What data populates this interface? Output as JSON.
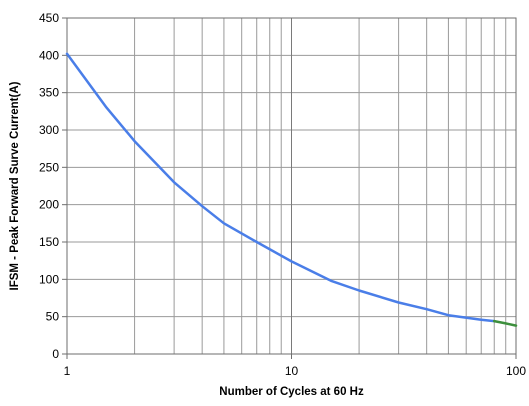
{
  "chart_data": {
    "type": "line",
    "xlabel": "Number of Cycles at 60 Hz",
    "ylabel": "IFSM - Peak Forward Surve Current(A)",
    "xscale": "log",
    "xlim": [
      1,
      100
    ],
    "ylim": [
      0,
      450
    ],
    "xticks": [
      1,
      10,
      100
    ],
    "xtick_labels": [
      "1",
      "10",
      "100"
    ],
    "yticks": [
      0,
      50,
      100,
      150,
      200,
      250,
      300,
      350,
      400,
      450
    ],
    "ytick_labels": [
      "0",
      "50",
      "100",
      "150",
      "200",
      "250",
      "300",
      "350",
      "400",
      "450"
    ],
    "grid": true,
    "legend": "none",
    "series": [
      {
        "color": "#4a7ee8",
        "x": [
          1,
          1.5,
          2,
          3,
          4,
          5,
          7,
          10,
          15,
          20,
          30,
          40,
          50,
          70,
          80
        ],
        "y": [
          402,
          330,
          285,
          230,
          198,
          175,
          150,
          124,
          98,
          85,
          69,
          60,
          52,
          46,
          44
        ]
      },
      {
        "color": "#3d8f3d",
        "x": [
          80,
          90,
          100
        ],
        "y": [
          44,
          41,
          38
        ]
      }
    ]
  }
}
